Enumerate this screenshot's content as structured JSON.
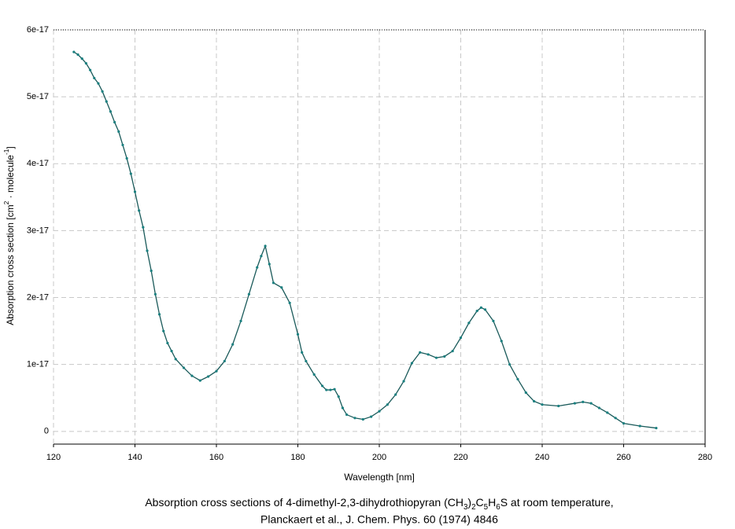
{
  "chart_data": {
    "type": "line",
    "caption": {
      "line1": [
        "Absorption cross sections of 4-dimethyl-2,3-dihydrothiopyran (CH",
        "3",
        ")",
        "2",
        "C",
        "5",
        "H",
        "6",
        "S at room temperature,"
      ],
      "line2": "Planckaert et al., J. Chem. Phys. 60 (1974) 4846"
    },
    "xlabel": "Wavelength [nm]",
    "ylabel": [
      "Absorption cross section [cm",
      "2",
      " · molecule",
      "-1",
      "]"
    ],
    "xlim": [
      120,
      280
    ],
    "xticks": [
      120,
      140,
      160,
      180,
      200,
      220,
      240,
      260,
      280
    ],
    "ylim": [
      -1.9e-18,
      6e-17
    ],
    "yticks": [
      0,
      1e-17,
      2e-17,
      3e-17,
      4e-17,
      5e-17,
      6e-17
    ],
    "grid": true,
    "series": [
      {
        "color": "#1a5a5a",
        "x": [
          125,
          126,
          127,
          128,
          129,
          130,
          131,
          132,
          133,
          134,
          135,
          136,
          137,
          138,
          139,
          140,
          141,
          142,
          143,
          144,
          145,
          146,
          147,
          148,
          149,
          150,
          152,
          154,
          156,
          158,
          160,
          162,
          164,
          166,
          168,
          170,
          171,
          172,
          173,
          174,
          176,
          178,
          180,
          181,
          182,
          184,
          186,
          187,
          188,
          189,
          190,
          191,
          192,
          194,
          196,
          198,
          200,
          202,
          204,
          206,
          208,
          210,
          212,
          214,
          216,
          218,
          220,
          222,
          224,
          225,
          226,
          228,
          230,
          232,
          234,
          236,
          238,
          240,
          244,
          248,
          250,
          252,
          254,
          256,
          258,
          260,
          264,
          268
        ],
        "values": [
          5.67e-17,
          5.63e-17,
          5.57e-17,
          5.5e-17,
          5.4e-17,
          5.28e-17,
          5.2e-17,
          5.08e-17,
          4.93e-17,
          4.78e-17,
          4.62e-17,
          4.48e-17,
          4.28e-17,
          4.08e-17,
          3.85e-17,
          3.58e-17,
          3.3e-17,
          3.05e-17,
          2.7e-17,
          2.4e-17,
          2.05e-17,
          1.75e-17,
          1.5e-17,
          1.32e-17,
          1.2e-17,
          1.08e-17,
          9.5e-18,
          8.3e-18,
          7.6e-18,
          8.2e-18,
          9e-18,
          1.05e-17,
          1.3e-17,
          1.65e-17,
          2.05e-17,
          2.45e-17,
          2.62e-17,
          2.77e-17,
          2.5e-17,
          2.22e-17,
          2.15e-17,
          1.92e-17,
          1.45e-17,
          1.18e-17,
          1.05e-17,
          8.5e-18,
          6.8e-18,
          6.2e-18,
          6.2e-18,
          6.3e-18,
          5.2e-18,
          3.5e-18,
          2.5e-18,
          2e-18,
          1.8e-18,
          2.2e-18,
          3e-18,
          4e-18,
          5.5e-18,
          7.5e-18,
          1.02e-17,
          1.18e-17,
          1.15e-17,
          1.1e-17,
          1.12e-17,
          1.2e-17,
          1.4e-17,
          1.62e-17,
          1.8e-17,
          1.85e-17,
          1.82e-17,
          1.65e-17,
          1.35e-17,
          1e-17,
          7.8e-18,
          5.8e-18,
          4.5e-18,
          4e-18,
          3.8e-18,
          4.2e-18,
          4.4e-18,
          4.2e-18,
          3.5e-18,
          2.8e-18,
          2e-18,
          1.2e-18,
          8e-19,
          5e-19
        ]
      }
    ]
  }
}
